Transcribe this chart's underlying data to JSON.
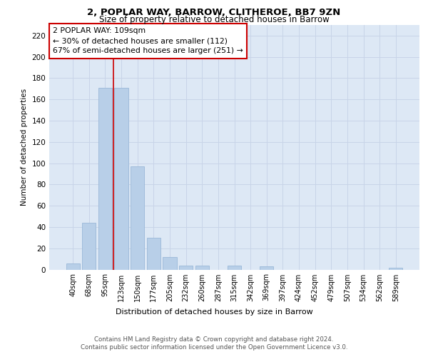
{
  "title1": "2, POPLAR WAY, BARROW, CLITHEROE, BB7 9ZN",
  "title2": "Size of property relative to detached houses in Barrow",
  "xlabel": "Distribution of detached houses by size in Barrow",
  "ylabel": "Number of detached properties",
  "categories": [
    "40sqm",
    "68sqm",
    "95sqm",
    "123sqm",
    "150sqm",
    "177sqm",
    "205sqm",
    "232sqm",
    "260sqm",
    "287sqm",
    "315sqm",
    "342sqm",
    "369sqm",
    "397sqm",
    "424sqm",
    "452sqm",
    "479sqm",
    "507sqm",
    "534sqm",
    "562sqm",
    "589sqm"
  ],
  "values": [
    6,
    44,
    171,
    171,
    97,
    30,
    12,
    4,
    4,
    0,
    4,
    0,
    3,
    0,
    0,
    0,
    0,
    0,
    0,
    0,
    2
  ],
  "bar_color": "#b8cfe8",
  "bar_edge_color": "#9ab8d8",
  "grid_color": "#c8d4e8",
  "bg_color": "#dde8f5",
  "annotation_box_text": "2 POPLAR WAY: 109sqm\n← 30% of detached houses are smaller (112)\n67% of semi-detached houses are larger (251) →",
  "annotation_box_color": "#cc0000",
  "property_line_x": 2.5,
  "ylim": [
    0,
    230
  ],
  "yticks": [
    0,
    20,
    40,
    60,
    80,
    100,
    120,
    140,
    160,
    180,
    200,
    220
  ],
  "footer_line1": "Contains HM Land Registry data © Crown copyright and database right 2024.",
  "footer_line2": "Contains public sector information licensed under the Open Government Licence v3.0."
}
